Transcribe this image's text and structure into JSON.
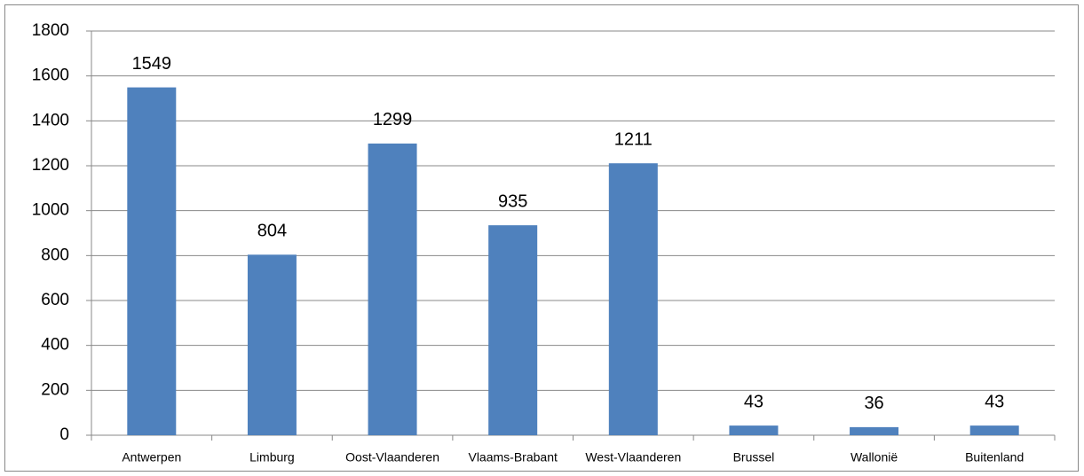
{
  "chart_data": {
    "type": "bar",
    "categories": [
      "Antwerpen",
      "Limburg",
      "Oost-Vlaanderen",
      "Vlaams-Brabant",
      "West-Vlaanderen",
      "Brussel",
      "Wallonië",
      "Buitenland"
    ],
    "values": [
      1549,
      804,
      1299,
      935,
      1211,
      43,
      36,
      43
    ],
    "color": "#4f81bd",
    "ylim": [
      0,
      1800
    ],
    "yticks": [
      0,
      200,
      400,
      600,
      800,
      1000,
      1200,
      1400,
      1600,
      1800
    ],
    "grid": true
  }
}
